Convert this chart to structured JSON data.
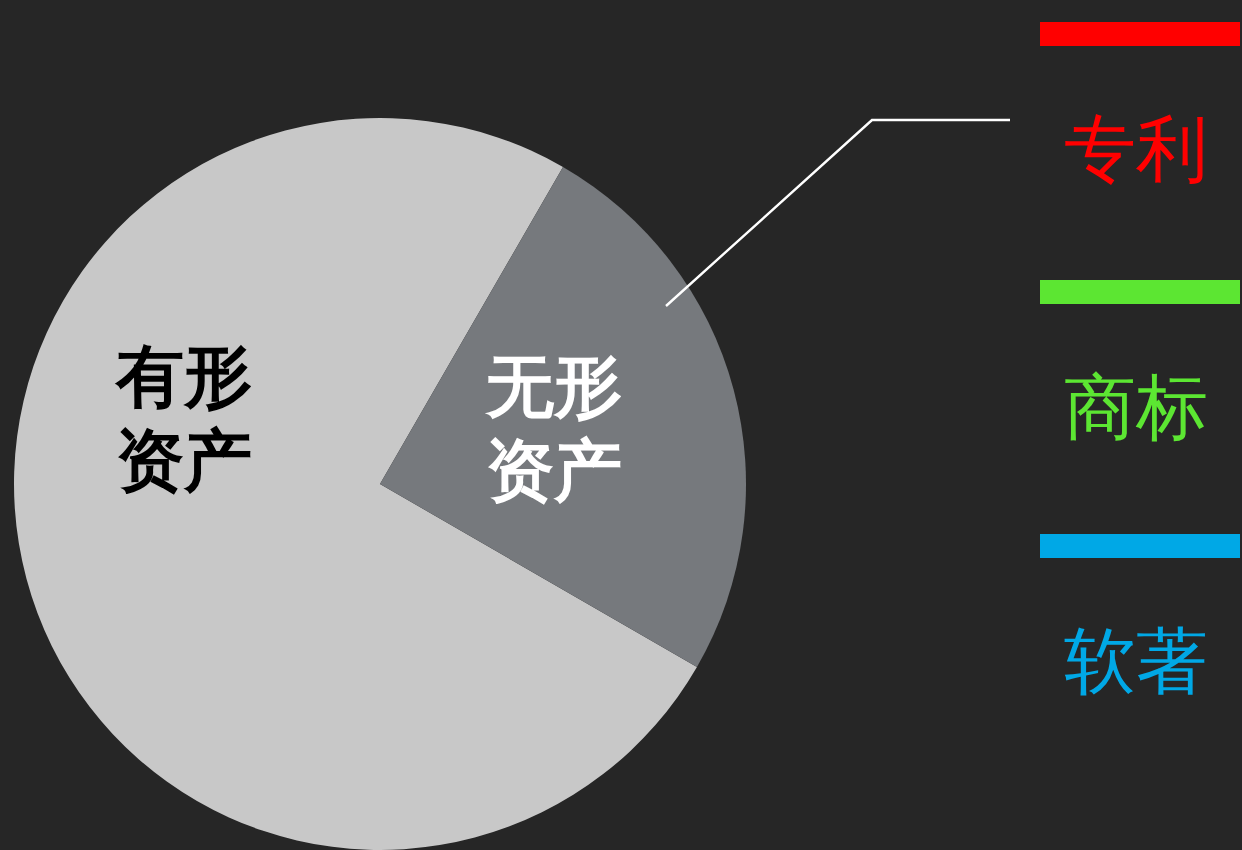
{
  "chart_data": [
    {
      "type": "pie",
      "categories": [
        "有形资产",
        "无形资产"
      ],
      "values": [
        75,
        25
      ],
      "colors": [
        "#c8c8c8",
        "#76797d"
      ]
    },
    {
      "type": "other",
      "categories": [
        "专利",
        "商标",
        "软著"
      ],
      "colors": [
        "#ff0000",
        "#5ce632",
        "#00a8e6"
      ]
    }
  ]
}
